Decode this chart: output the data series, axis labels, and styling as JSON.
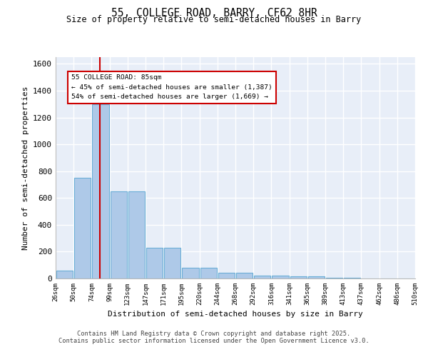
{
  "title": "55, COLLEGE ROAD, BARRY, CF62 8HR",
  "subtitle": "Size of property relative to semi-detached houses in Barry",
  "xlabel": "Distribution of semi-detached houses by size in Barry",
  "ylabel": "Number of semi-detached properties",
  "bar_color": "#aec9e8",
  "bar_edge_color": "#6aaed6",
  "background_color": "#e8eef8",
  "grid_color": "#ffffff",
  "bin_labels": [
    "26sqm",
    "50sqm",
    "74sqm",
    "99sqm",
    "123sqm",
    "147sqm",
    "171sqm",
    "195sqm",
    "220sqm",
    "244sqm",
    "268sqm",
    "292sqm",
    "316sqm",
    "341sqm",
    "365sqm",
    "389sqm",
    "413sqm",
    "437sqm",
    "462sqm",
    "486sqm",
    "510sqm"
  ],
  "bar_heights": [
    60,
    750,
    1300,
    650,
    650,
    230,
    230,
    80,
    80,
    40,
    40,
    20,
    20,
    15,
    15,
    5,
    5,
    2,
    2,
    0
  ],
  "property_line_color": "#cc0000",
  "annotation_text": "55 COLLEGE ROAD: 85sqm\n← 45% of semi-detached houses are smaller (1,387)\n54% of semi-detached houses are larger (1,669) →",
  "ylim": [
    0,
    1650
  ],
  "yticks": [
    0,
    200,
    400,
    600,
    800,
    1000,
    1200,
    1400,
    1600
  ],
  "footer_line1": "Contains HM Land Registry data © Crown copyright and database right 2025.",
  "footer_line2": "Contains public sector information licensed under the Open Government Licence v3.0.",
  "bin_edges": [
    26,
    50,
    74,
    99,
    123,
    147,
    171,
    195,
    220,
    244,
    268,
    292,
    316,
    341,
    365,
    389,
    413,
    437,
    462,
    486,
    510
  ],
  "property_sqm": 85
}
